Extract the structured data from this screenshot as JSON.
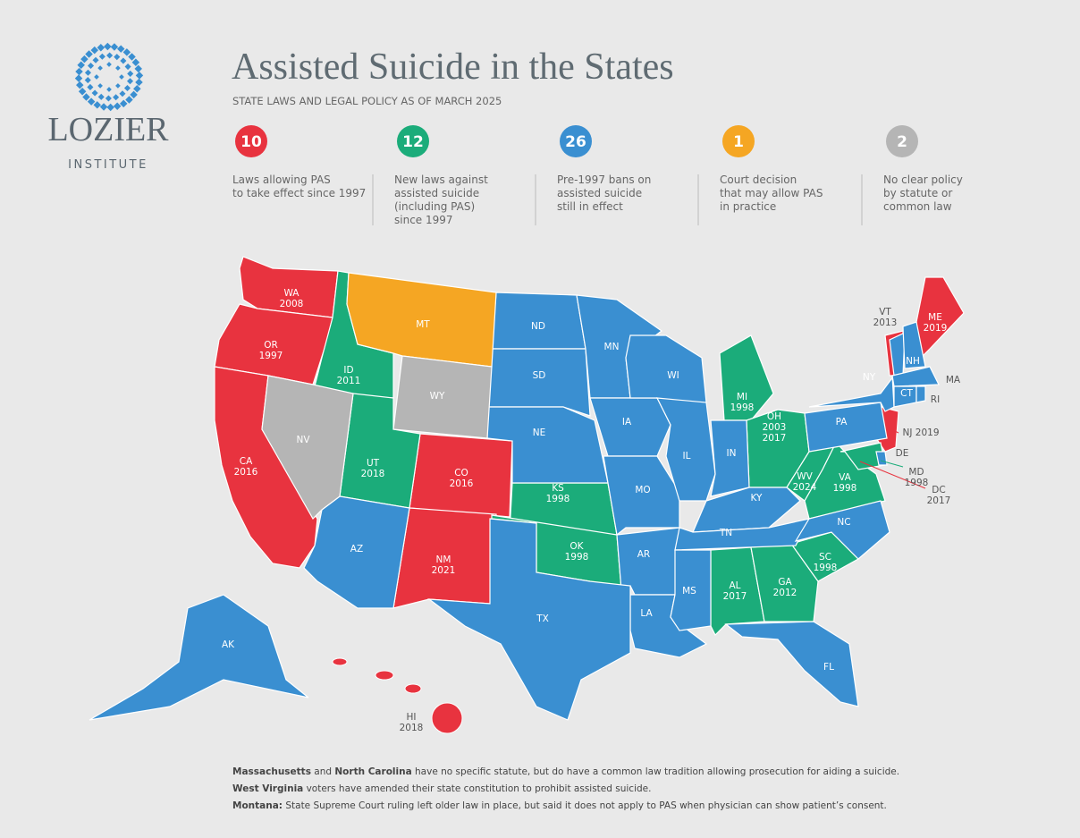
{
  "logo": {
    "name": "LOZIER",
    "sub": "INSTITUTE"
  },
  "header": {
    "title": "Assisted Suicide in the States",
    "subtitle": "STATE LAWS AND LEGAL POLICY AS OF MARCH 2025"
  },
  "stats": [
    {
      "number": 10,
      "color": "#e8333f",
      "lines": [
        "Laws allowing PAS",
        "to take effect since 1997"
      ],
      "states": [
        {
          "label": "WA",
          "years": [
            2008
          ]
        },
        {
          "label": "OR",
          "years": [
            1997
          ]
        },
        {
          "label": "CA",
          "years": [
            2016
          ]
        },
        {
          "label": "CO",
          "years": [
            2016
          ]
        },
        {
          "label": "NM",
          "years": [
            2021
          ]
        },
        {
          "label": "HI",
          "years": [
            2018
          ]
        },
        {
          "label": "VT",
          "years": [
            2013
          ]
        },
        {
          "label": "ME",
          "years": [
            2019
          ]
        },
        {
          "label": "NJ",
          "years": [
            2019
          ]
        },
        {
          "label": "DC",
          "years": [
            2017
          ]
        }
      ]
    },
    {
      "number": 12,
      "color": "#1bac7a",
      "lines": [
        "New laws against",
        "assisted suicide",
        "(including PAS)",
        "since 1997"
      ],
      "states": [
        {
          "label": "ID",
          "years": [
            2011
          ]
        },
        {
          "label": "UT",
          "years": [
            2018
          ]
        },
        {
          "label": "KS",
          "years": [
            1998
          ]
        },
        {
          "label": "OK",
          "years": [
            1998
          ]
        },
        {
          "label": "MI",
          "years": [
            1998
          ]
        },
        {
          "label": "OH",
          "years": [
            2003,
            2017
          ]
        },
        {
          "label": "WV",
          "years": [
            2024
          ]
        },
        {
          "label": "VA",
          "years": [
            1998
          ]
        },
        {
          "label": "AL",
          "years": [
            2017
          ]
        },
        {
          "label": "GA",
          "years": [
            2012
          ]
        },
        {
          "label": "SC",
          "years": [
            1998
          ]
        },
        {
          "label": "MD",
          "years": [
            1998
          ]
        }
      ]
    },
    {
      "number": 26,
      "color": "#3a8fd1",
      "lines": [
        "Pre-1997 bans on",
        "assisted suicide",
        "still in effect"
      ],
      "states": [
        {
          "label": "ND"
        },
        {
          "label": "SD"
        },
        {
          "label": "NE"
        },
        {
          "label": "MN"
        },
        {
          "label": "IA"
        },
        {
          "label": "MO"
        },
        {
          "label": "AR"
        },
        {
          "label": "LA"
        },
        {
          "label": "TX"
        },
        {
          "label": "AZ"
        },
        {
          "label": "WI"
        },
        {
          "label": "IL"
        },
        {
          "label": "IN"
        },
        {
          "label": "KY"
        },
        {
          "label": "TN"
        },
        {
          "label": "MS"
        },
        {
          "label": "FL"
        },
        {
          "label": "NC"
        },
        {
          "label": "PA"
        },
        {
          "label": "NY"
        },
        {
          "label": "NH"
        },
        {
          "label": "MA"
        },
        {
          "label": "CT"
        },
        {
          "label": "RI"
        },
        {
          "label": "DE"
        },
        {
          "label": "AK"
        }
      ]
    },
    {
      "number": 1,
      "color": "#f5a623",
      "lines": [
        "Court decision",
        "that may allow PAS",
        "in practice"
      ],
      "states": [
        {
          "label": "MT"
        }
      ]
    },
    {
      "number": 2,
      "color": "#b5b5b5",
      "lines": [
        "No clear policy",
        "by statute or",
        "common law"
      ],
      "states": [
        {
          "label": "WY"
        },
        {
          "label": "NV"
        }
      ]
    }
  ],
  "notes": [
    [
      {
        "text": "Massachusetts",
        "bold": true
      },
      {
        "text": " and "
      },
      {
        "text": "North Carolina",
        "bold": true
      },
      {
        "text": " have no specific statute, but do have a common law tradition allowing prosecution for aiding a suicide."
      }
    ],
    [
      {
        "text": "West Virginia",
        "bold": true
      },
      {
        "text": " voters have amended their state constitution to prohibit assisted suicide."
      }
    ],
    [
      {
        "text": "Montana:",
        "bold": true
      },
      {
        "text": " State Supreme Court ruling left older law in place, but said it does not apply to PAS when physician can show patient’s consent."
      }
    ]
  ]
}
